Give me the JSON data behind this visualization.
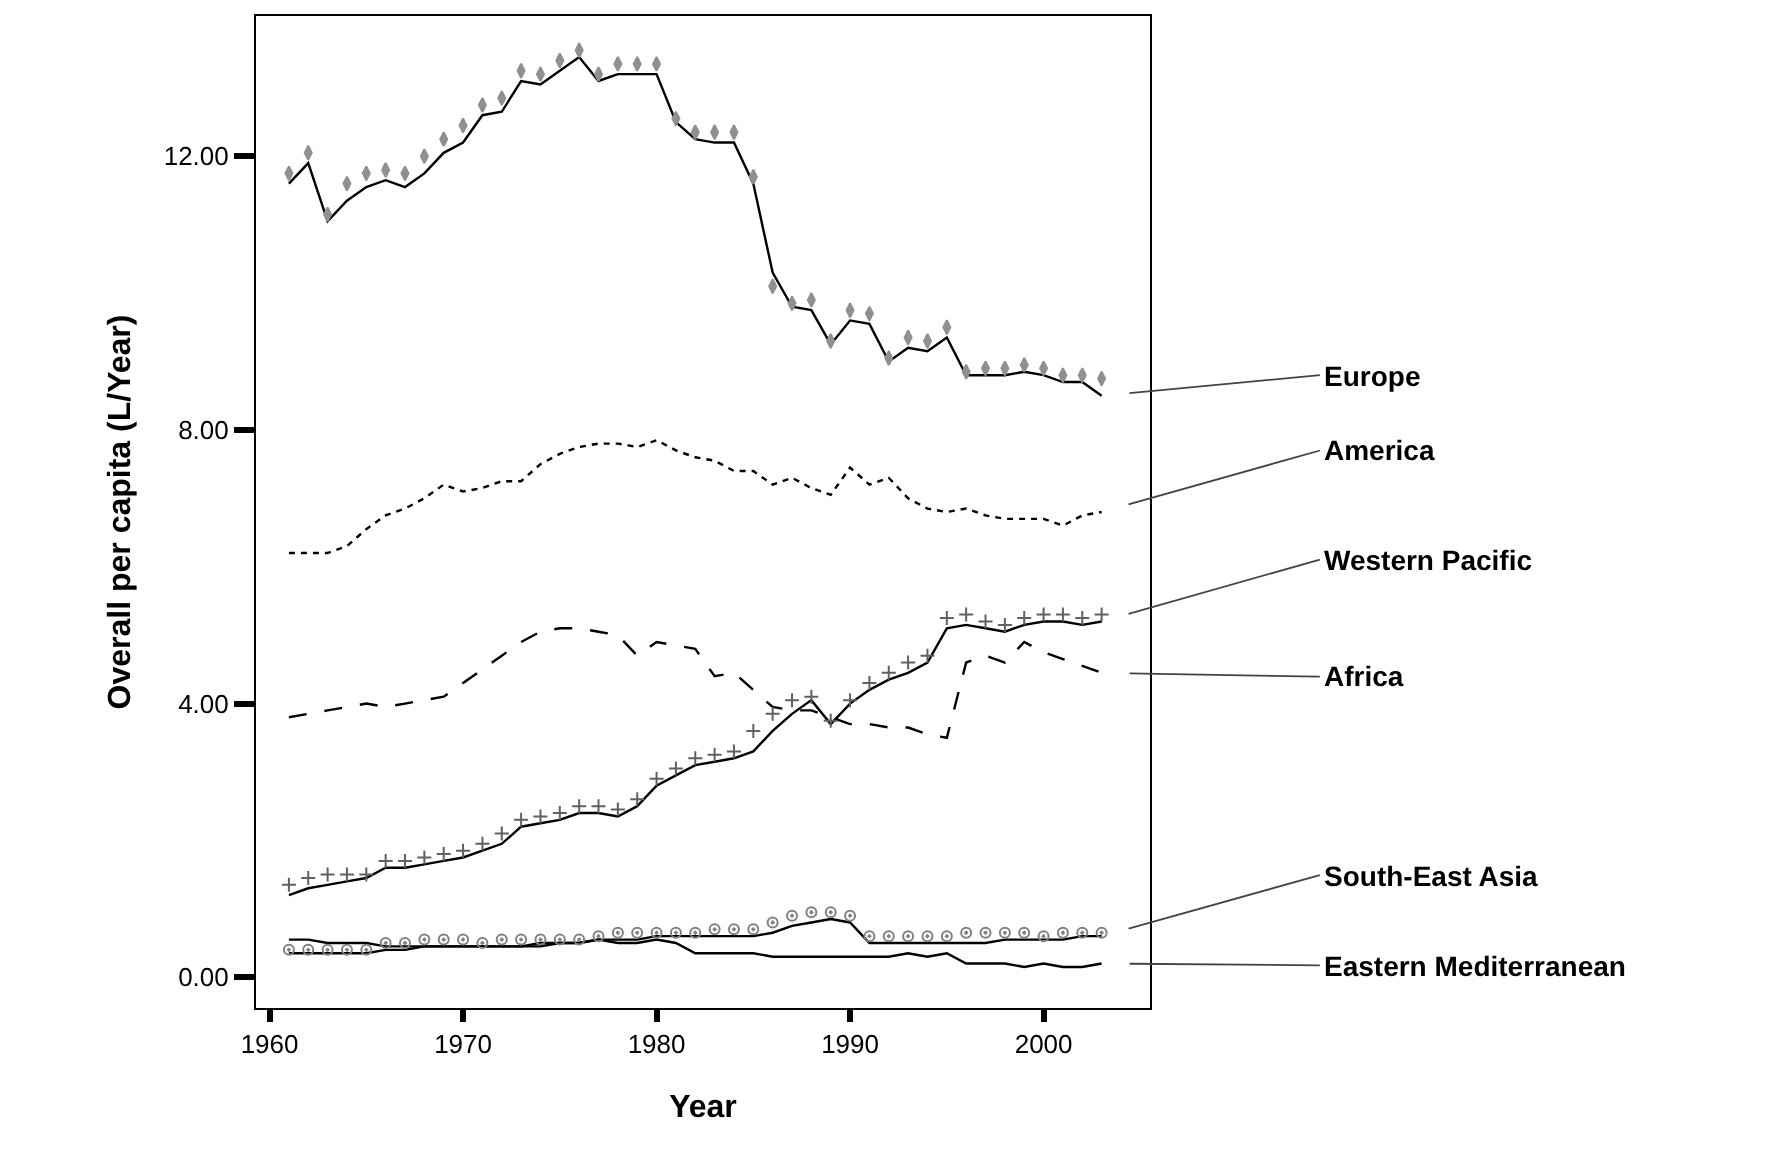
{
  "chart_data": {
    "type": "line",
    "xlabel": "Year",
    "ylabel": "Overall per capita (L/Year)",
    "x": [
      1961,
      1962,
      1963,
      1964,
      1965,
      1966,
      1967,
      1968,
      1969,
      1970,
      1971,
      1972,
      1973,
      1974,
      1975,
      1976,
      1977,
      1978,
      1979,
      1980,
      1981,
      1982,
      1983,
      1984,
      1985,
      1986,
      1987,
      1988,
      1989,
      1990,
      1991,
      1992,
      1993,
      1994,
      1995,
      1996,
      1997,
      1998,
      1999,
      2000,
      2001,
      2002,
      2003
    ],
    "series": [
      {
        "name": "Europe",
        "color": "#000000",
        "line_style": "solid",
        "values": [
          11.6,
          11.9,
          11.05,
          11.35,
          11.55,
          11.65,
          11.55,
          11.75,
          12.05,
          12.2,
          12.6,
          12.65,
          13.1,
          13.05,
          13.25,
          13.45,
          13.1,
          13.2,
          13.2,
          13.2,
          12.5,
          12.25,
          12.2,
          12.2,
          11.6,
          10.3,
          9.8,
          9.75,
          9.25,
          9.6,
          9.55,
          9.0,
          9.2,
          9.15,
          9.35,
          8.8,
          8.8,
          8.8,
          8.85,
          8.8,
          8.7,
          8.7,
          8.5
        ]
      },
      {
        "name": "America",
        "color": "#000000",
        "line_style": "dotted",
        "values": [
          6.2,
          6.2,
          6.2,
          6.3,
          6.55,
          6.75,
          6.85,
          7.0,
          7.2,
          7.1,
          7.15,
          7.25,
          7.25,
          7.5,
          7.65,
          7.75,
          7.8,
          7.8,
          7.75,
          7.85,
          7.7,
          7.6,
          7.55,
          7.4,
          7.4,
          7.2,
          7.3,
          7.15,
          7.05,
          7.45,
          7.2,
          7.3,
          7.0,
          6.85,
          6.8,
          6.85,
          6.75,
          6.7,
          6.7,
          6.7,
          6.6,
          6.75,
          6.8
        ]
      },
      {
        "name": "Western Pacific",
        "color": "#000000",
        "line_style": "solid",
        "values": [
          1.2,
          1.3,
          1.35,
          1.4,
          1.45,
          1.6,
          1.6,
          1.65,
          1.7,
          1.75,
          1.85,
          1.95,
          2.2,
          2.25,
          2.3,
          2.4,
          2.4,
          2.35,
          2.5,
          2.8,
          2.95,
          3.1,
          3.15,
          3.2,
          3.3,
          3.6,
          3.85,
          4.05,
          3.7,
          4.0,
          4.2,
          4.35,
          4.45,
          4.6,
          5.1,
          5.15,
          5.1,
          5.05,
          5.15,
          5.2,
          5.2,
          5.15,
          5.2
        ]
      },
      {
        "name": "Africa",
        "color": "#000000",
        "line_style": "dashed",
        "values": [
          3.8,
          3.85,
          3.9,
          3.95,
          4.0,
          3.95,
          4.0,
          4.05,
          4.1,
          4.3,
          4.5,
          4.7,
          4.9,
          5.05,
          5.1,
          5.1,
          5.05,
          5.0,
          4.7,
          4.9,
          4.85,
          4.8,
          4.4,
          4.45,
          4.2,
          3.95,
          3.9,
          3.9,
          3.8,
          3.7,
          3.7,
          3.65,
          3.65,
          3.55,
          3.5,
          4.6,
          4.7,
          4.6,
          4.9,
          4.75,
          4.65,
          4.55,
          4.45
        ]
      },
      {
        "name": "South-East Asia",
        "color": "#000000",
        "line_style": "solid",
        "values": [
          0.35,
          0.35,
          0.35,
          0.35,
          0.35,
          0.4,
          0.4,
          0.45,
          0.45,
          0.45,
          0.45,
          0.45,
          0.45,
          0.5,
          0.5,
          0.5,
          0.55,
          0.55,
          0.55,
          0.6,
          0.6,
          0.6,
          0.6,
          0.6,
          0.6,
          0.65,
          0.75,
          0.8,
          0.85,
          0.8,
          0.5,
          0.5,
          0.5,
          0.5,
          0.5,
          0.5,
          0.5,
          0.55,
          0.55,
          0.55,
          0.55,
          0.6,
          0.6
        ]
      },
      {
        "name": "Eastern Mediterranean",
        "color": "#000000",
        "line_style": "solid",
        "values": [
          0.55,
          0.55,
          0.5,
          0.5,
          0.5,
          0.45,
          0.45,
          0.45,
          0.45,
          0.45,
          0.45,
          0.45,
          0.45,
          0.45,
          0.5,
          0.5,
          0.55,
          0.5,
          0.5,
          0.55,
          0.5,
          0.35,
          0.35,
          0.35,
          0.35,
          0.3,
          0.3,
          0.3,
          0.3,
          0.3,
          0.3,
          0.3,
          0.35,
          0.3,
          0.35,
          0.2,
          0.2,
          0.2,
          0.15,
          0.2,
          0.15,
          0.15,
          0.2
        ]
      },
      {
        "type": "scatter",
        "marker": "diamond",
        "color": "#909090",
        "values": [
          11.75,
          12.05,
          11.15,
          11.6,
          11.75,
          11.8,
          11.75,
          12.0,
          12.25,
          12.45,
          12.75,
          12.85,
          13.25,
          13.2,
          13.4,
          13.55,
          13.2,
          13.35,
          13.35,
          13.35,
          12.55,
          12.35,
          12.35,
          12.35,
          11.7,
          10.1,
          9.85,
          9.9,
          9.3,
          9.75,
          9.7,
          9.05,
          9.35,
          9.3,
          9.5,
          8.85,
          8.9,
          8.9,
          8.95,
          8.9,
          8.8,
          8.8,
          8.75
        ]
      },
      {
        "type": "scatter",
        "marker": "cross",
        "color": "#606060",
        "values": [
          1.35,
          1.45,
          1.5,
          1.5,
          1.5,
          1.7,
          1.7,
          1.75,
          1.8,
          1.85,
          1.95,
          2.1,
          2.3,
          2.35,
          2.4,
          2.5,
          2.5,
          2.45,
          2.6,
          2.9,
          3.05,
          3.2,
          3.25,
          3.3,
          3.6,
          3.85,
          4.05,
          4.1,
          3.75,
          4.05,
          4.3,
          4.45,
          4.6,
          4.7,
          5.25,
          5.3,
          5.2,
          5.15,
          5.25,
          5.3,
          5.3,
          5.25,
          5.3
        ]
      },
      {
        "type": "scatter",
        "marker": "circle",
        "color": "#808080",
        "values": [
          0.4,
          0.4,
          0.4,
          0.4,
          0.4,
          0.5,
          0.5,
          0.55,
          0.55,
          0.55,
          0.5,
          0.55,
          0.55,
          0.55,
          0.55,
          0.55,
          0.6,
          0.65,
          0.65,
          0.65,
          0.65,
          0.65,
          0.7,
          0.7,
          0.7,
          0.8,
          0.9,
          0.95,
          0.95,
          0.9,
          0.6,
          0.6,
          0.6,
          0.6,
          0.6,
          0.65,
          0.65,
          0.65,
          0.65,
          0.6,
          0.65,
          0.65,
          0.65
        ]
      }
    ],
    "xlim": [
      1959.3,
      2005.5
    ],
    "ylim": [
      -0.45,
      14.05
    ],
    "xticks": [
      1960,
      1970,
      1980,
      1990,
      2000
    ],
    "yticks": [
      {
        "value": 0,
        "label": "0.00"
      },
      {
        "value": 4,
        "label": "4.00"
      },
      {
        "value": 8,
        "label": "8.00"
      },
      {
        "value": 12,
        "label": "12.00"
      }
    ],
    "legend": false
  }
}
